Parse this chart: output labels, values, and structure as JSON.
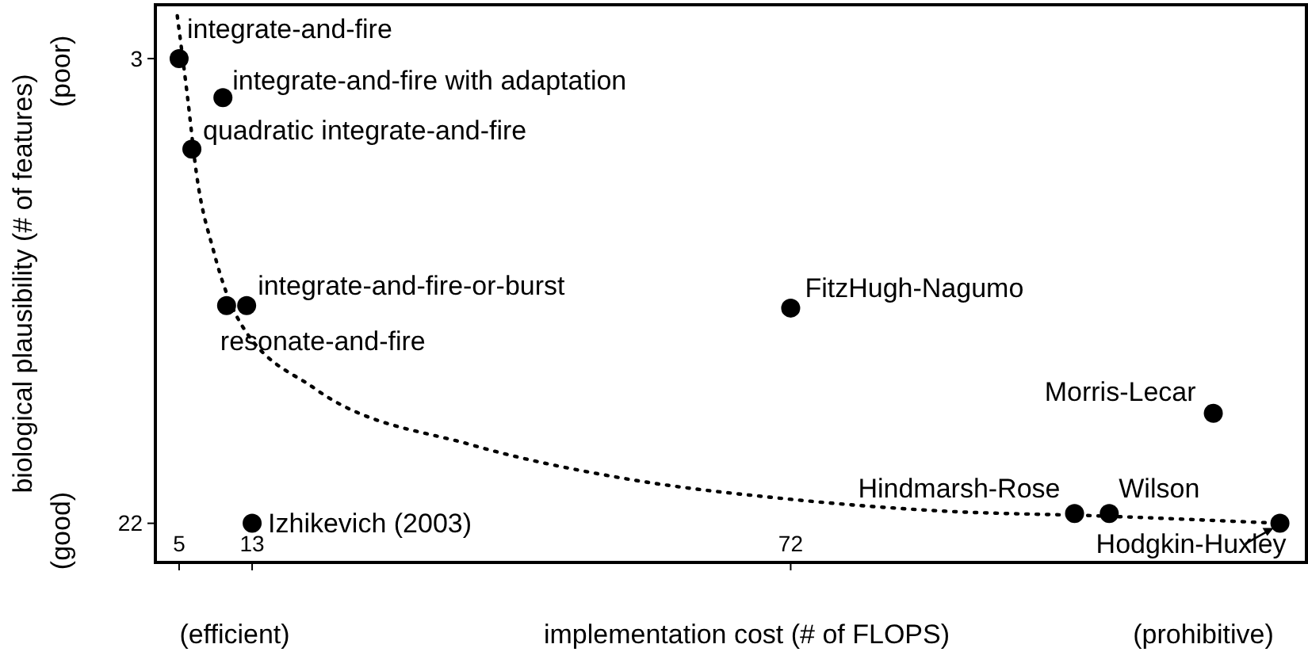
{
  "chart_data": {
    "type": "scatter",
    "xlabel": "implementation cost (# of FLOPS)",
    "ylabel": "biological plausibility (# of features)",
    "xlim": [
      2.4,
      128.5
    ],
    "ylim": [
      23.6,
      0.8
    ],
    "xticks": [
      5,
      13,
      72
    ],
    "yticks": [
      3,
      22
    ],
    "grid": false,
    "marker": "circle",
    "series": [
      {
        "type": "line",
        "color": "#000000",
        "line_style": "dotted",
        "marker": "none",
        "x": [
          4.8,
          5.9,
          6.9,
          8.8,
          11.4,
          19.9,
          37.1,
          54.3,
          71.5,
          88.7,
          105.9,
          125.6
        ],
        "values": [
          1.25,
          4.5,
          7.7,
          10.9,
          13.6,
          16.5,
          18.8,
          20.2,
          21.0,
          21.5,
          21.7,
          22
        ]
      },
      {
        "color": "#000000",
        "x": [
          5,
          9.8,
          6.4,
          12.4,
          10.2,
          13,
          72,
          118.3,
          103.1,
          106.9,
          125.6
        ],
        "values": [
          3,
          4.6,
          6.7,
          13.1,
          13.1,
          22,
          13.2,
          17.5,
          21.6,
          21.6,
          22
        ]
      }
    ],
    "annotations": [
      {
        "text": "integrate-and-fire",
        "x": 5,
        "y": 3
      },
      {
        "text": "integrate-and-fire with adaptation",
        "x": 9.8,
        "y": 4.6
      },
      {
        "text": "quadratic integrate-and-fire",
        "x": 6.4,
        "y": 6.7
      },
      {
        "text": "integrate-and-fire-or-burst",
        "x": 12.4,
        "y": 13.1
      },
      {
        "text": "resonate-and-fire",
        "x": 10.2,
        "y": 13.1
      },
      {
        "text": "Izhikevich (2003)",
        "x": 13,
        "y": 22
      },
      {
        "text": "FitzHugh-Nagumo",
        "x": 72,
        "y": 13.2
      },
      {
        "text": "Morris-Lecar",
        "x": 118.3,
        "y": 17.5
      },
      {
        "text": "Hindmarsh-Rose",
        "x": 103.1,
        "y": 21.6
      },
      {
        "text": "Wilson",
        "x": 106.9,
        "y": 21.6
      },
      {
        "text": "Hodgkin-Huxley",
        "x": 125.6,
        "y": 22
      },
      "(poor)",
      "(good)",
      "(efficient)",
      "(prohibitive)"
    ]
  }
}
